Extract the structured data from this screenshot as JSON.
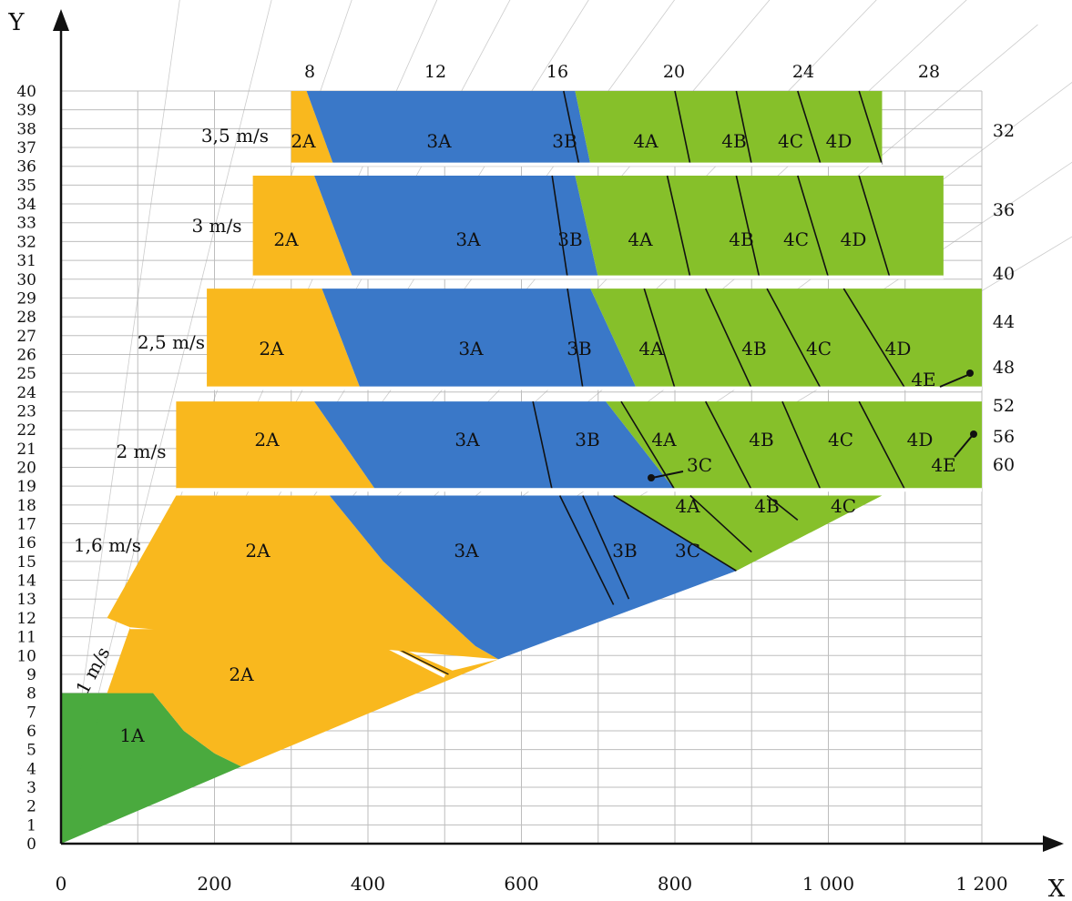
{
  "chart_data": {
    "type": "area",
    "x_axis": {
      "label": "X",
      "range": [
        0,
        1200
      ],
      "ticks": [
        "0",
        "200",
        "400",
        "600",
        "800",
        "1 000",
        "1 200"
      ],
      "tick_values": [
        0,
        200,
        400,
        600,
        800,
        1000,
        1200
      ]
    },
    "y_axis": {
      "label": "Y",
      "range": [
        0,
        40
      ],
      "ticks": [
        "0",
        "1",
        "2",
        "3",
        "4",
        "5",
        "6",
        "7",
        "8",
        "9",
        "10",
        "11",
        "12",
        "13",
        "14",
        "15",
        "16",
        "17",
        "18",
        "19",
        "20",
        "21",
        "22",
        "23",
        "24",
        "25",
        "26",
        "27",
        "28",
        "29",
        "30",
        "31",
        "32",
        "33",
        "34",
        "35",
        "36",
        "37",
        "38",
        "39",
        "40"
      ]
    },
    "grid": true,
    "ray_labels": [
      "8",
      "12",
      "16",
      "20",
      "24",
      "28",
      "32",
      "36",
      "40",
      "44",
      "48",
      "52",
      "56",
      "60"
    ],
    "colors": {
      "1A": "#4aaa3e",
      "2A": "#f9b81e",
      "3A": "#3a78c8",
      "3B": "#3a78c8",
      "3C": "#3a78c8",
      "4": "#86c02a"
    },
    "bands": [
      {
        "label": "1 m/s",
        "y": [
          0,
          12
        ],
        "zones": [
          {
            "name": "1A",
            "x": [
              [
                0,
                0
              ],
              [
                0,
                8
              ],
              [
                120,
                8
              ],
              [
                240,
                4
              ]
            ]
          },
          {
            "name": "2A",
            "x": [
              [
                0,
                8
              ],
              [
                90,
                11.5
              ],
              [
                380,
                11.5
              ],
              [
                510,
                9
              ],
              [
                570,
                9.8
              ],
              [
                0,
                0
              ]
            ]
          }
        ]
      },
      {
        "label": "1,6 m/s",
        "y": [
          12,
          18.5
        ],
        "zones": [
          {
            "name": "2A"
          },
          {
            "name": "3A"
          },
          {
            "name": "3B"
          },
          {
            "name": "3C"
          },
          {
            "name": "4A"
          },
          {
            "name": "4B"
          },
          {
            "name": "4C"
          }
        ]
      },
      {
        "label": "2 m/s",
        "y": [
          18.8,
          23.5
        ],
        "zones": [
          {
            "name": "2A"
          },
          {
            "name": "3A"
          },
          {
            "name": "3B"
          },
          {
            "name": "3C"
          },
          {
            "name": "4A"
          },
          {
            "name": "4B"
          },
          {
            "name": "4C"
          },
          {
            "name": "4D"
          },
          {
            "name": "4E"
          }
        ]
      },
      {
        "label": "2,5 m/s",
        "y": [
          24,
          29.5
        ],
        "zones": [
          {
            "name": "2A"
          },
          {
            "name": "3A"
          },
          {
            "name": "3B"
          },
          {
            "name": "4A"
          },
          {
            "name": "4B"
          },
          {
            "name": "4C"
          },
          {
            "name": "4D"
          },
          {
            "name": "4E"
          }
        ]
      },
      {
        "label": "3 m/s",
        "y": [
          30,
          35.5
        ],
        "zones": [
          {
            "name": "2A"
          },
          {
            "name": "3A"
          },
          {
            "name": "3B"
          },
          {
            "name": "4A"
          },
          {
            "name": "4B"
          },
          {
            "name": "4C"
          },
          {
            "name": "4D"
          }
        ]
      },
      {
        "label": "3,5 m/s",
        "y": [
          36,
          40
        ],
        "zones": [
          {
            "name": "2A"
          },
          {
            "name": "3A"
          },
          {
            "name": "3B"
          },
          {
            "name": "4A"
          },
          {
            "name": "4B"
          },
          {
            "name": "4C"
          },
          {
            "name": "4D"
          }
        ]
      }
    ]
  }
}
